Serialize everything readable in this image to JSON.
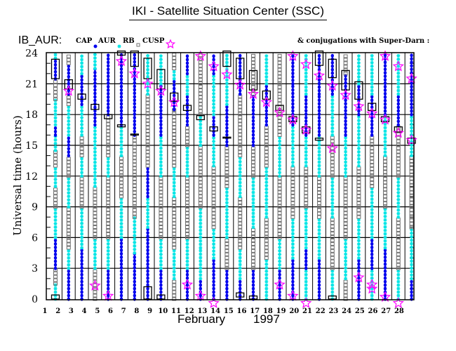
{
  "title": "IKI - Satellite Situation Center (SSC)",
  "instrument": "IB_AUR:",
  "legend": {
    "cap": "CAP",
    "aur": "AUR",
    "rb": "RB",
    "cusp": "CUSP",
    "conjugations": "& conjugations with Super-Darn :"
  },
  "colors": {
    "cap": "#0000ee",
    "aur": "#00e5e5",
    "rb": "#707070",
    "cusp": "#ff00ff",
    "grid": "#000000"
  },
  "chart_data": {
    "type": "scatter",
    "title": "IKI - Satellite Situation Center (SSC)",
    "xlabel_month": "February",
    "xlabel_year": "1997",
    "ylabel": "Universal time (hours)",
    "ylim": [
      0,
      24
    ],
    "yticks": [
      "0",
      "3",
      "6",
      "9",
      "12",
      "15",
      "18",
      "21",
      "24"
    ],
    "xticks": [
      "1",
      "2",
      "3",
      "4",
      "5",
      "6",
      "7",
      "8",
      "9",
      "10",
      "11",
      "12",
      "13",
      "14",
      "15",
      "16",
      "17",
      "18",
      "19",
      "20",
      "21",
      "22",
      "23",
      "24",
      "25",
      "26",
      "27",
      "28"
    ],
    "tracks": [
      [
        [
          "a",
          0,
          1.5
        ],
        [
          "r",
          1.5,
          3
        ],
        [
          "c",
          3,
          6
        ],
        [
          "a",
          6,
          9
        ],
        [
          "r",
          9,
          11
        ],
        [
          "a",
          11,
          13
        ],
        [
          "r",
          13,
          14.5
        ],
        [
          "a",
          14.5,
          16
        ],
        [
          "c",
          16,
          17
        ],
        [
          "a",
          17,
          19.5
        ],
        [
          "r",
          19.5,
          21.5
        ],
        [
          "c",
          21.5,
          23.5
        ],
        [
          "a",
          23.5,
          24
        ]
      ],
      [
        [
          "c",
          0,
          3
        ],
        [
          "a",
          3,
          5
        ],
        [
          "r",
          5,
          9
        ],
        [
          "a",
          9,
          12
        ],
        [
          "r",
          12,
          14
        ],
        [
          "c",
          14,
          16
        ],
        [
          "a",
          16,
          19
        ],
        [
          "r",
          19,
          20
        ],
        [
          "c",
          20,
          23
        ],
        [
          "r",
          23,
          24
        ]
      ],
      [
        [
          "c",
          0,
          5
        ],
        [
          "a",
          5,
          9
        ],
        [
          "r",
          9,
          12
        ],
        [
          "a",
          12,
          14
        ],
        [
          "r",
          14,
          16
        ],
        [
          "a",
          16,
          19
        ],
        [
          "c",
          19,
          22
        ],
        [
          "a",
          22,
          24
        ]
      ],
      [
        [
          "r",
          0,
          3
        ],
        [
          "a",
          3,
          6
        ],
        [
          "r",
          6,
          11
        ],
        [
          "a",
          11,
          13
        ],
        [
          "a",
          13,
          17
        ],
        [
          "c",
          17,
          22.5
        ],
        [
          "a",
          22.5,
          24
        ]
      ],
      [
        [
          "c",
          0,
          3
        ],
        [
          "a",
          3,
          6
        ],
        [
          "r",
          6,
          12
        ],
        [
          "a",
          12,
          14
        ],
        [
          "r",
          14,
          18
        ],
        [
          "c",
          18,
          24
        ]
      ],
      [
        [
          "c",
          0,
          6
        ],
        [
          "a",
          6,
          10
        ],
        [
          "r",
          10,
          14
        ],
        [
          "a",
          14,
          17
        ],
        [
          "c",
          17,
          24
        ]
      ],
      [
        [
          "c",
          0,
          4.5
        ],
        [
          "a",
          4.5,
          8
        ],
        [
          "r",
          8,
          16
        ],
        [
          "c",
          16,
          24
        ]
      ],
      [
        [
          "c",
          0,
          7
        ],
        [
          "a",
          7,
          10
        ],
        [
          "c",
          10,
          13
        ],
        [
          "r",
          13,
          20
        ],
        [
          "a",
          20,
          24
        ]
      ],
      [
        [
          "c",
          0,
          3
        ],
        [
          "a",
          3,
          6
        ],
        [
          "r",
          6,
          12
        ],
        [
          "a",
          12,
          16
        ],
        [
          "c",
          16,
          21
        ],
        [
          "a",
          21,
          24
        ]
      ],
      [
        [
          "r",
          0,
          2
        ],
        [
          "a",
          2,
          5
        ],
        [
          "r",
          5,
          10
        ],
        [
          "a",
          10,
          13
        ],
        [
          "r",
          13,
          18.5
        ],
        [
          "c",
          18.5,
          21.5
        ],
        [
          "a",
          21.5,
          22.5
        ],
        [
          "r",
          22.5,
          24
        ]
      ],
      [
        [
          "c",
          0,
          3
        ],
        [
          "a",
          3,
          6
        ],
        [
          "r",
          6,
          12
        ],
        [
          "a",
          12,
          15
        ],
        [
          "r",
          15,
          17
        ],
        [
          "c",
          17,
          20
        ],
        [
          "a",
          20,
          22
        ],
        [
          "c",
          22,
          24
        ]
      ],
      [
        [
          "c",
          0,
          2
        ],
        [
          "a",
          2,
          5
        ],
        [
          "a",
          5,
          9
        ],
        [
          "r",
          9,
          15
        ],
        [
          "a",
          15,
          18
        ],
        [
          "r",
          18,
          24
        ]
      ],
      [
        [
          "c",
          0,
          4
        ],
        [
          "a",
          4,
          7
        ],
        [
          "r",
          7,
          13
        ],
        [
          "a",
          13,
          16
        ],
        [
          "c",
          16,
          18
        ],
        [
          "a",
          18,
          22
        ],
        [
          "c",
          22,
          24
        ]
      ],
      [
        [
          "c",
          0,
          3
        ],
        [
          "r",
          3,
          6
        ],
        [
          "a",
          6,
          11
        ],
        [
          "r",
          11,
          15
        ],
        [
          "c",
          15,
          19
        ],
        [
          "a",
          19,
          24
        ]
      ],
      [
        [
          "c",
          0,
          2
        ],
        [
          "a",
          2,
          5
        ],
        [
          "r",
          5,
          10
        ],
        [
          "a",
          10,
          14
        ],
        [
          "r",
          14,
          20
        ],
        [
          "c",
          20,
          24
        ]
      ],
      [
        [
          "c",
          0,
          3
        ],
        [
          "r",
          3,
          7
        ],
        [
          "a",
          7,
          12
        ],
        [
          "r",
          12,
          15
        ],
        [
          "c",
          15,
          20
        ],
        [
          "r",
          20,
          24
        ]
      ],
      [
        [
          "a",
          0,
          4
        ],
        [
          "r",
          4,
          8
        ],
        [
          "a",
          8,
          13
        ],
        [
          "r",
          13,
          17
        ],
        [
          "c",
          17,
          21
        ],
        [
          "a",
          21,
          24
        ]
      ],
      [
        [
          "c",
          0,
          3
        ],
        [
          "a",
          3,
          6
        ],
        [
          "r",
          6,
          12
        ],
        [
          "a",
          12,
          16
        ],
        [
          "r",
          16,
          20
        ],
        [
          "r",
          20,
          24
        ]
      ],
      [
        [
          "c",
          0,
          4
        ],
        [
          "a",
          4,
          8
        ],
        [
          "r",
          8,
          13
        ],
        [
          "a",
          13,
          17
        ],
        [
          "c",
          17,
          21
        ],
        [
          "c",
          21,
          24
        ]
      ],
      [
        [
          "a",
          0,
          3
        ],
        [
          "c",
          3,
          5
        ],
        [
          "a",
          5,
          9
        ],
        [
          "r",
          9,
          13
        ],
        [
          "a",
          13,
          16
        ],
        [
          "c",
          16,
          20
        ],
        [
          "a",
          20,
          24
        ]
      ],
      [
        [
          "c",
          0,
          4
        ],
        [
          "a",
          4,
          8
        ],
        [
          "r",
          8,
          12
        ],
        [
          "a",
          12,
          16
        ],
        [
          "c",
          16,
          20
        ],
        [
          "c",
          20,
          24
        ]
      ],
      [
        [
          "a",
          0,
          3
        ],
        [
          "r",
          3,
          8
        ],
        [
          "a",
          8,
          12
        ],
        [
          "r",
          12,
          16
        ],
        [
          "a",
          16,
          20
        ],
        [
          "c",
          20,
          24
        ]
      ],
      [
        [
          "r",
          0,
          2
        ],
        [
          "a",
          2,
          6
        ],
        [
          "r",
          6,
          12
        ],
        [
          "a",
          12,
          16
        ],
        [
          "c",
          16,
          22
        ],
        [
          "r",
          22,
          24
        ]
      ],
      [
        [
          "c",
          0,
          4
        ],
        [
          "a",
          4,
          8
        ],
        [
          "r",
          8,
          13
        ],
        [
          "a",
          13,
          18
        ],
        [
          "c",
          18,
          21
        ],
        [
          "a",
          21,
          24
        ]
      ],
      [
        [
          "a",
          0,
          3
        ],
        [
          "c",
          3,
          6
        ],
        [
          "a",
          6,
          11
        ],
        [
          "r",
          11,
          16
        ],
        [
          "c",
          16,
          20
        ],
        [
          "a",
          20,
          24
        ]
      ],
      [
        [
          "c",
          0,
          5
        ],
        [
          "a",
          5,
          9
        ],
        [
          "r",
          9,
          14
        ],
        [
          "a",
          14,
          18
        ],
        [
          "c",
          18,
          24
        ]
      ],
      [
        [
          "a",
          0,
          3
        ],
        [
          "r",
          3,
          8
        ],
        [
          "a",
          8,
          12
        ],
        [
          "r",
          12,
          17
        ],
        [
          "c",
          17,
          20
        ],
        [
          "a",
          20,
          24
        ]
      ],
      [
        [
          "c",
          0,
          2
        ],
        [
          "a",
          2,
          7
        ],
        [
          "r",
          7,
          14
        ],
        [
          "a",
          14,
          18
        ],
        [
          "c",
          18,
          24
        ]
      ]
    ],
    "boxes": [
      [
        0,
        21.5,
        23.4
      ],
      [
        0,
        0,
        0.4
      ],
      [
        1,
        20.5,
        21.4
      ],
      [
        2,
        19.5,
        20.0
      ],
      [
        3,
        18.5,
        19.0
      ],
      [
        4,
        17.6,
        18.0
      ],
      [
        5,
        16.8,
        17.0
      ],
      [
        5,
        23.8,
        24.2
      ],
      [
        6,
        22.7,
        24.2
      ],
      [
        6,
        16.0,
        16.1
      ],
      [
        7,
        21.5,
        23.5
      ],
      [
        7,
        0,
        1.2
      ],
      [
        8,
        20.5,
        22.4
      ],
      [
        8,
        0,
        0.4
      ],
      [
        9,
        19.3,
        20.1
      ],
      [
        10,
        18.4,
        18.9
      ],
      [
        11,
        17.5,
        17.9
      ],
      [
        12,
        16.4,
        16.8
      ],
      [
        13,
        22.7,
        24.2
      ],
      [
        13,
        15.7,
        15.8
      ],
      [
        14,
        21.5,
        23.5
      ],
      [
        14,
        0.2,
        0.6
      ],
      [
        15,
        20.4,
        22.3
      ],
      [
        15,
        0,
        0.3
      ],
      [
        16,
        19.5,
        20.3
      ],
      [
        17,
        18.4,
        18.9
      ],
      [
        18,
        17.3,
        17.8
      ],
      [
        19,
        16.2,
        16.8
      ],
      [
        20,
        22.8,
        24.2
      ],
      [
        20,
        15.5,
        15.7
      ],
      [
        21,
        21.6,
        23.4
      ],
      [
        21,
        0,
        0.3
      ],
      [
        22,
        20.4,
        22.3
      ],
      [
        23,
        19.5,
        21.2
      ],
      [
        24,
        18.4,
        19.1
      ],
      [
        25,
        17.3,
        17.8
      ],
      [
        26,
        16.3,
        16.8
      ],
      [
        27,
        15.2,
        15.7
      ]
    ],
    "cusp_stars": [
      [
        1,
        20.3
      ],
      [
        5,
        23.2
      ],
      [
        6,
        22.0
      ],
      [
        7,
        21.0
      ],
      [
        8,
        20.3
      ],
      [
        9,
        19.2
      ],
      [
        11,
        23.7
      ],
      [
        12,
        22.7
      ],
      [
        13,
        21.9
      ],
      [
        14,
        20.9
      ],
      [
        15,
        20.0
      ],
      [
        16,
        19.2
      ],
      [
        17,
        18.2
      ],
      [
        18,
        23.7
      ],
      [
        18,
        17.5
      ],
      [
        19,
        22.9
      ],
      [
        19,
        16.5
      ],
      [
        20,
        21.8
      ],
      [
        21,
        20.8
      ],
      [
        21,
        14.7
      ],
      [
        22,
        19.9
      ],
      [
        23,
        18.8
      ],
      [
        24,
        18.1
      ],
      [
        25,
        23.7
      ],
      [
        25,
        17.5
      ],
      [
        26,
        22.7
      ],
      [
        26,
        16.2
      ],
      [
        27,
        21.5
      ],
      [
        27,
        15.5
      ],
      [
        3,
        1.3
      ],
      [
        4,
        0.3
      ],
      [
        10,
        1.4
      ],
      [
        11,
        0.3
      ],
      [
        12,
        -0.4
      ],
      [
        17,
        1.4
      ],
      [
        18,
        0.3
      ],
      [
        19,
        -0.4
      ],
      [
        23,
        2.1
      ],
      [
        24,
        1.4
      ],
      [
        24,
        1.0
      ],
      [
        25,
        0.2
      ],
      [
        26,
        -0.4
      ]
    ]
  }
}
